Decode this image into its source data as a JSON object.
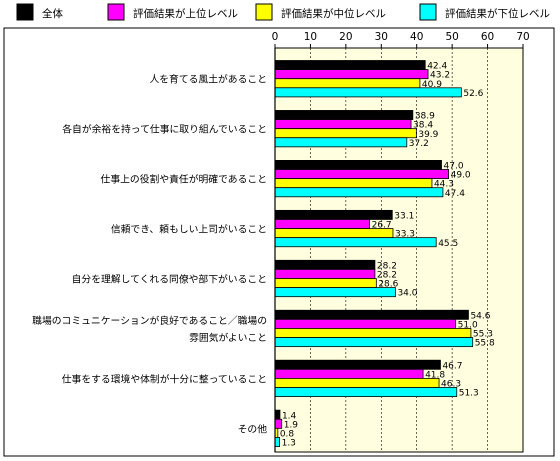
{
  "chart_data": {
    "type": "bar",
    "orientation": "horizontal",
    "categories": [
      [
        "人を育てる風土があること"
      ],
      [
        "各自が余裕を持って仕事に取り組んでいること"
      ],
      [
        "仕事上の役割や責任が明確であること"
      ],
      [
        "信頼でき、頼もしい上司がいること"
      ],
      [
        "自分を理解してくれる同僚や部下がいること"
      ],
      [
        "職場のコミュニケーションが良好であること／職場の",
        "雰囲気がよいこと"
      ],
      [
        "仕事をする環境や体制が十分に整っていること"
      ],
      [
        "その他"
      ]
    ],
    "series": [
      {
        "name": "全体",
        "color": "#000000",
        "values": [
          42.4,
          38.9,
          47.0,
          33.1,
          28.2,
          54.6,
          46.7,
          1.4
        ],
        "labels": [
          "42.4",
          "38.9",
          "47.0",
          "33.1",
          "28.2",
          "54.6",
          "46.7",
          "1.4"
        ]
      },
      {
        "name": "評価結果が上位レベル",
        "color": "#ff00ff",
        "values": [
          43.2,
          38.4,
          49.0,
          26.7,
          28.2,
          51.0,
          41.8,
          1.9
        ],
        "labels": [
          "43.2",
          "38.4",
          "49.0",
          "26.7",
          "28.2",
          "51.0",
          "41.8",
          "1.9"
        ]
      },
      {
        "name": "評価結果が中位レベル",
        "color": "#ffff00",
        "values": [
          40.9,
          39.9,
          44.3,
          33.3,
          28.6,
          55.3,
          46.3,
          0.8
        ],
        "labels": [
          "40.9",
          "39.9",
          "44.3",
          "33.3",
          "28.6",
          "55.3",
          "46.3",
          "0.8"
        ]
      },
      {
        "name": "評価結果が下位レベル",
        "color": "#00ffff",
        "values": [
          52.6,
          37.2,
          47.4,
          45.5,
          34.0,
          55.8,
          51.3,
          1.3
        ],
        "labels": [
          "52.6",
          "37.2",
          "47.4",
          "45.5",
          "34.0",
          "55.8",
          "51.3",
          "1.3"
        ]
      }
    ],
    "xlim": [
      0,
      70
    ],
    "ticks": [
      "0",
      "10",
      "20",
      "30",
      "40",
      "50",
      "60",
      "70"
    ],
    "tick_values": [
      0,
      10,
      20,
      30,
      40,
      50,
      60,
      70
    ],
    "grid": true,
    "legend_position": "top",
    "plot_background": "#ffffe0"
  }
}
